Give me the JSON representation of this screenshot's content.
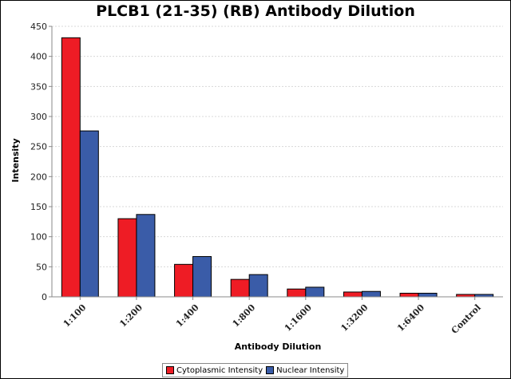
{
  "chart_data": {
    "type": "bar",
    "title": "PLCB1 (21-35) (RB) Antibody Dilution",
    "xlabel": "Antibody Dilution",
    "ylabel": "Intensity",
    "ylim": [
      0,
      450
    ],
    "yticks": [
      "0",
      "50",
      "100",
      "150",
      "200",
      "250",
      "300",
      "350",
      "400",
      "450"
    ],
    "categories": [
      "1:100",
      "1:200",
      "1:400",
      "1:800",
      "1:1600",
      "1:3200",
      "1:6400",
      "Control"
    ],
    "series": [
      {
        "name": "Cytoplasmic Intensity",
        "color": "#ee1c25",
        "values": [
          431,
          130,
          54,
          29,
          13,
          8,
          6,
          4
        ]
      },
      {
        "name": "Nuclear Intensity",
        "color": "#3a5ca8",
        "values": [
          276,
          137,
          67,
          37,
          16,
          9,
          6,
          4
        ]
      }
    ],
    "grid": true,
    "legend": "bottom"
  }
}
